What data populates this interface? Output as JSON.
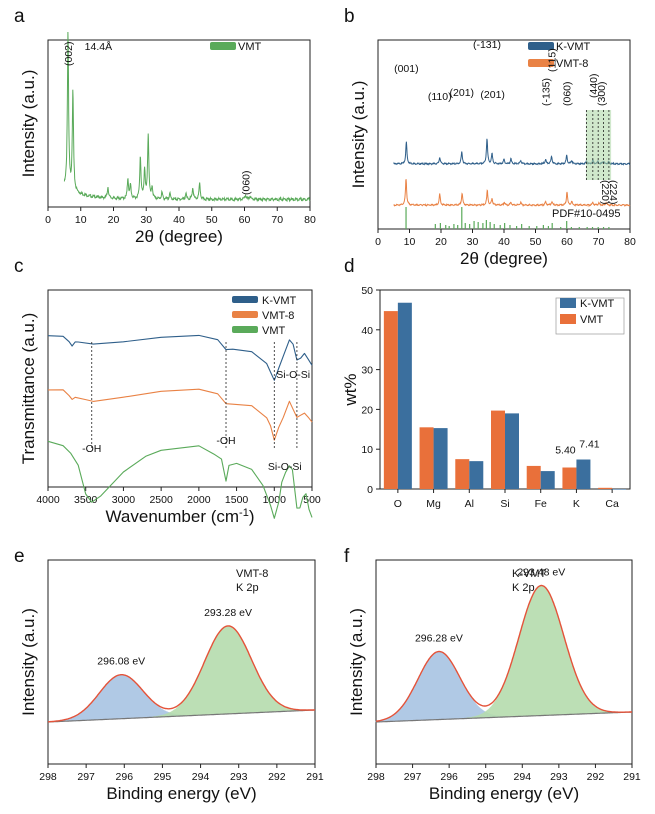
{
  "chart_data": [
    {
      "panel": "a",
      "type": "line",
      "title": "",
      "xlabel": "2θ (degree)",
      "ylabel": "Intensity (a.u.)",
      "xlim": [
        0,
        80
      ],
      "xticks": [
        0,
        10,
        20,
        30,
        40,
        50,
        60,
        70,
        80
      ],
      "yticks": false,
      "legend_position": "top-right",
      "series": [
        {
          "name": "VMT",
          "color": "#5aaa5a",
          "peaks": [
            [
              6.1,
              140
            ],
            [
              7.6,
              88
            ],
            [
              18.3,
              10
            ],
            [
              24.4,
              18
            ],
            [
              25.2,
              12
            ],
            [
              28.2,
              38
            ],
            [
              29.5,
              26
            ],
            [
              30.6,
              58
            ],
            [
              31.8,
              10
            ],
            [
              34.8,
              6
            ],
            [
              37.2,
              5
            ],
            [
              42.1,
              5
            ],
            [
              44.2,
              10
            ],
            [
              46.3,
              14
            ],
            [
              60.3,
              4
            ],
            [
              61.7,
              3
            ]
          ],
          "baseline": 3
        }
      ],
      "annotations": [
        {
          "text": "(002)",
          "x": 6.1,
          "rotated": true
        },
        {
          "text": "14.4Å",
          "x": 11.5
        },
        {
          "text": "(060)",
          "x": 60.3,
          "rotated": true
        }
      ]
    },
    {
      "panel": "b",
      "type": "line",
      "title": "",
      "xlabel": "2θ (degree)",
      "ylabel": "Intensity (a.u.)",
      "xlim": [
        0,
        80
      ],
      "xticks": [
        0,
        10,
        20,
        30,
        40,
        50,
        60,
        70,
        80
      ],
      "yticks": false,
      "legend_position": "top-right",
      "series": [
        {
          "name": "K-VMT",
          "color": "#2f5f8a",
          "peaks": [
            [
              9.0,
              40
            ],
            [
              19.6,
              12
            ],
            [
              26.6,
              22
            ],
            [
              34.6,
              46
            ],
            [
              36.2,
              18
            ],
            [
              40.0,
              8
            ],
            [
              42.2,
              9
            ],
            [
              45.3,
              6
            ],
            [
              53.2,
              8
            ],
            [
              55.1,
              14
            ],
            [
              59.9,
              15
            ],
            [
              61.5,
              6
            ],
            [
              66.2,
              5
            ],
            [
              68.2,
              7
            ],
            [
              69.8,
              5
            ],
            [
              71.5,
              5
            ],
            [
              73.2,
              4
            ]
          ],
          "baseline": 110
        },
        {
          "name": "VMT-8",
          "color": "#e98245",
          "peaks": [
            [
              8.9,
              48
            ],
            [
              19.6,
              20
            ],
            [
              26.7,
              22
            ],
            [
              34.7,
              26
            ],
            [
              36.2,
              12
            ],
            [
              40.1,
              5
            ],
            [
              42.2,
              5
            ],
            [
              45.3,
              5
            ],
            [
              53.2,
              6
            ],
            [
              55.2,
              6
            ],
            [
              60.0,
              24
            ],
            [
              61.5,
              6
            ],
            [
              68.2,
              5
            ],
            [
              70.1,
              4
            ],
            [
              72.4,
              5
            ]
          ],
          "baseline": 35
        }
      ],
      "reference": {
        "name": "PDF#10-0495",
        "color": "#5aaa5a",
        "sticks": [
          [
            8.9,
            22
          ],
          [
            18.2,
            5
          ],
          [
            19.8,
            6
          ],
          [
            21.5,
            4
          ],
          [
            22.6,
            3
          ],
          [
            24.1,
            5
          ],
          [
            25.3,
            4
          ],
          [
            26.6,
            22
          ],
          [
            27.7,
            6
          ],
          [
            29.1,
            5
          ],
          [
            30.5,
            8
          ],
          [
            31.8,
            7
          ],
          [
            33.3,
            6
          ],
          [
            34.4,
            9
          ],
          [
            35.6,
            7
          ],
          [
            36.9,
            5
          ],
          [
            38.8,
            4
          ],
          [
            40.2,
            6
          ],
          [
            41.9,
            4
          ],
          [
            44.0,
            3
          ],
          [
            45.6,
            5
          ],
          [
            48.0,
            3
          ],
          [
            50.4,
            3
          ],
          [
            52.5,
            4
          ],
          [
            54.1,
            3
          ],
          [
            55.3,
            6
          ],
          [
            58.0,
            2
          ],
          [
            59.9,
            8
          ],
          [
            61.4,
            2
          ],
          [
            63.9,
            2
          ],
          [
            66.4,
            2
          ],
          [
            68.1,
            2
          ],
          [
            69.9,
            2
          ],
          [
            71.6,
            2
          ],
          [
            73.3,
            2
          ]
        ]
      },
      "shaded_region": [
        66,
        74
      ],
      "dashed_lines": [
        66.2,
        68.2,
        69.9,
        71.6,
        73.3
      ],
      "annotations": [
        {
          "text": "(001)",
          "x": 9.0
        },
        {
          "text": "(110)",
          "x": 19.6
        },
        {
          "text": "(201)",
          "x": 26.6
        },
        {
          "text": "(-131)",
          "x": 34.6
        },
        {
          "text": "(201)",
          "x": 36.4
        },
        {
          "text": "(115)",
          "x": 55.1
        },
        {
          "text": "(-135)",
          "x": 53.2
        },
        {
          "text": "(060)",
          "x": 59.9
        },
        {
          "text": "(440)",
          "x": 68.2
        },
        {
          "text": "(300)",
          "x": 70.1
        },
        {
          "text": "(220)",
          "x": 69.9
        },
        {
          "text": "(224)",
          "x": 72.2
        },
        {
          "text": "PDF#10-0495",
          "x": 68
        }
      ]
    },
    {
      "panel": "c",
      "type": "line",
      "title": "",
      "xlabel": "Wavenumber (cm⁻¹)",
      "ylabel": "Transmittance (a.u.)",
      "xlim": [
        4000,
        500
      ],
      "xticks": [
        4000,
        3500,
        3000,
        2500,
        2000,
        1500,
        1000,
        500
      ],
      "yticks": false,
      "legend_position": "top-right",
      "series": [
        {
          "name": "K-VMT",
          "color": "#2f5f8a",
          "offset": 5,
          "points": [
            [
              4000,
              0
            ],
            [
              3800,
              0
            ],
            [
              3720,
              -3
            ],
            [
              3680,
              -5
            ],
            [
              3640,
              -3
            ],
            [
              3600,
              -3
            ],
            [
              3400,
              -4
            ],
            [
              3000,
              -3
            ],
            [
              2500,
              -1
            ],
            [
              2000,
              0
            ],
            [
              1750,
              -2
            ],
            [
              1640,
              -7
            ],
            [
              1550,
              -7
            ],
            [
              1300,
              -8
            ],
            [
              1100,
              -14
            ],
            [
              1050,
              -18
            ],
            [
              1000,
              -22
            ],
            [
              940,
              -16
            ],
            [
              880,
              -10
            ],
            [
              800,
              -2
            ],
            [
              750,
              -4
            ],
            [
              700,
              -12
            ],
            [
              650,
              -11
            ],
            [
              600,
              -9
            ],
            [
              550,
              -12
            ],
            [
              500,
              -15
            ]
          ]
        },
        {
          "name": "VMT-8",
          "color": "#e98245",
          "offset": -22,
          "points": [
            [
              4000,
              0
            ],
            [
              3800,
              0
            ],
            [
              3720,
              -3
            ],
            [
              3680,
              -5
            ],
            [
              3640,
              -4
            ],
            [
              3500,
              -5
            ],
            [
              3400,
              -6
            ],
            [
              3000,
              -4
            ],
            [
              2500,
              -1
            ],
            [
              2000,
              0
            ],
            [
              1750,
              -2
            ],
            [
              1640,
              -7
            ],
            [
              1550,
              -7
            ],
            [
              1300,
              -8
            ],
            [
              1100,
              -14
            ],
            [
              1050,
              -18
            ],
            [
              1000,
              -25
            ],
            [
              940,
              -19
            ],
            [
              880,
              -14
            ],
            [
              800,
              -6
            ],
            [
              750,
              -10
            ],
            [
              700,
              -14
            ],
            [
              650,
              -13
            ],
            [
              600,
              -12
            ],
            [
              550,
              -14
            ],
            [
              500,
              -16
            ]
          ]
        },
        {
          "name": "VMT",
          "color": "#5aaa5a",
          "offset": -48,
          "points": [
            [
              4000,
              0
            ],
            [
              3800,
              -2
            ],
            [
              3700,
              -6
            ],
            [
              3600,
              -12
            ],
            [
              3500,
              -26
            ],
            [
              3420,
              -30
            ],
            [
              3300,
              -27
            ],
            [
              3000,
              -15
            ],
            [
              2700,
              -7
            ],
            [
              2500,
              -4
            ],
            [
              2000,
              -2
            ],
            [
              1800,
              -6
            ],
            [
              1700,
              -9
            ],
            [
              1640,
              -20
            ],
            [
              1600,
              -12
            ],
            [
              1500,
              -11
            ],
            [
              1300,
              -14
            ],
            [
              1150,
              -22
            ],
            [
              1050,
              -32
            ],
            [
              1000,
              -38
            ],
            [
              940,
              -30
            ],
            [
              900,
              -20
            ],
            [
              850,
              -15
            ],
            [
              800,
              -12
            ],
            [
              760,
              -14
            ],
            [
              700,
              -33
            ],
            [
              660,
              -33
            ],
            [
              620,
              -28
            ],
            [
              580,
              -26
            ],
            [
              540,
              -34
            ],
            [
              500,
              -38
            ]
          ]
        }
      ],
      "dashed_lines": [
        3420,
        1640,
        1000,
        700
      ],
      "annotations": [
        {
          "text": "-OH",
          "x": 3420
        },
        {
          "text": "-OH",
          "x": 1640
        },
        {
          "text": "Si-O-Si",
          "x": 1000
        },
        {
          "text": "Si-O-Si",
          "x": 700
        }
      ]
    },
    {
      "panel": "d",
      "type": "bar",
      "title": "",
      "xlabel": "",
      "ylabel": "wt%",
      "categories": [
        "O",
        "Mg",
        "Al",
        "Si",
        "Fe",
        "K",
        "Ca"
      ],
      "ylim": [
        0,
        50
      ],
      "yticks": [
        0,
        10,
        20,
        30,
        40,
        50
      ],
      "legend_position": "top-right",
      "series": [
        {
          "name": "VMT",
          "color": "#e9703a",
          "values": [
            44.7,
            15.5,
            7.5,
            19.7,
            5.8,
            5.4,
            0.3
          ]
        },
        {
          "name": "K-VMT",
          "color": "#3b6f9e",
          "values": [
            46.8,
            15.3,
            7.0,
            19.0,
            4.5,
            7.41,
            0
          ]
        }
      ],
      "data_labels": [
        {
          "category": "K",
          "series": "VMT",
          "text": "5.40"
        },
        {
          "category": "K",
          "series": "K-VMT",
          "text": "7.41"
        }
      ]
    },
    {
      "panel": "e",
      "type": "area",
      "title": "",
      "xlabel": "Binding energy (eV)",
      "ylabel": "Intensity (a.u.)",
      "xlim": [
        298,
        291
      ],
      "xticks": [
        298,
        297,
        296,
        295,
        294,
        293,
        292,
        291
      ],
      "yticks": false,
      "legend_position": "top-right",
      "legend_text": [
        "VMT-8",
        "K 2p"
      ],
      "peaks": [
        {
          "label": "296.08 eV",
          "center": 296.08,
          "amplitude": 44,
          "fwhm": 1.35,
          "color": "#a8c4e3"
        },
        {
          "label": "293.28 eV",
          "center": 293.28,
          "amplitude": 88,
          "fwhm": 1.45,
          "color": "#b5dcae"
        }
      ],
      "background": [
        [
          298,
          0
        ],
        [
          291,
          12
        ]
      ],
      "envelope_color": "#e4533a"
    },
    {
      "panel": "f",
      "type": "area",
      "title": "",
      "xlabel": "Binding energy (eV)",
      "ylabel": "Intensity (a.u.)",
      "xlim": [
        298,
        291
      ],
      "xticks": [
        298,
        297,
        296,
        295,
        294,
        293,
        292,
        291
      ],
      "yticks": false,
      "legend_position": "top-left",
      "legend_text": [
        "K-VMT",
        "K 2p"
      ],
      "peaks": [
        {
          "label": "296.28 eV",
          "center": 296.28,
          "amplitude": 68,
          "fwhm": 1.35,
          "color": "#a8c4e3"
        },
        {
          "label": "293.48 eV",
          "center": 293.48,
          "amplitude": 130,
          "fwhm": 1.45,
          "color": "#b5dcae"
        }
      ],
      "background": [
        [
          298,
          0
        ],
        [
          291,
          10
        ]
      ],
      "envelope_color": "#e4533a"
    }
  ]
}
